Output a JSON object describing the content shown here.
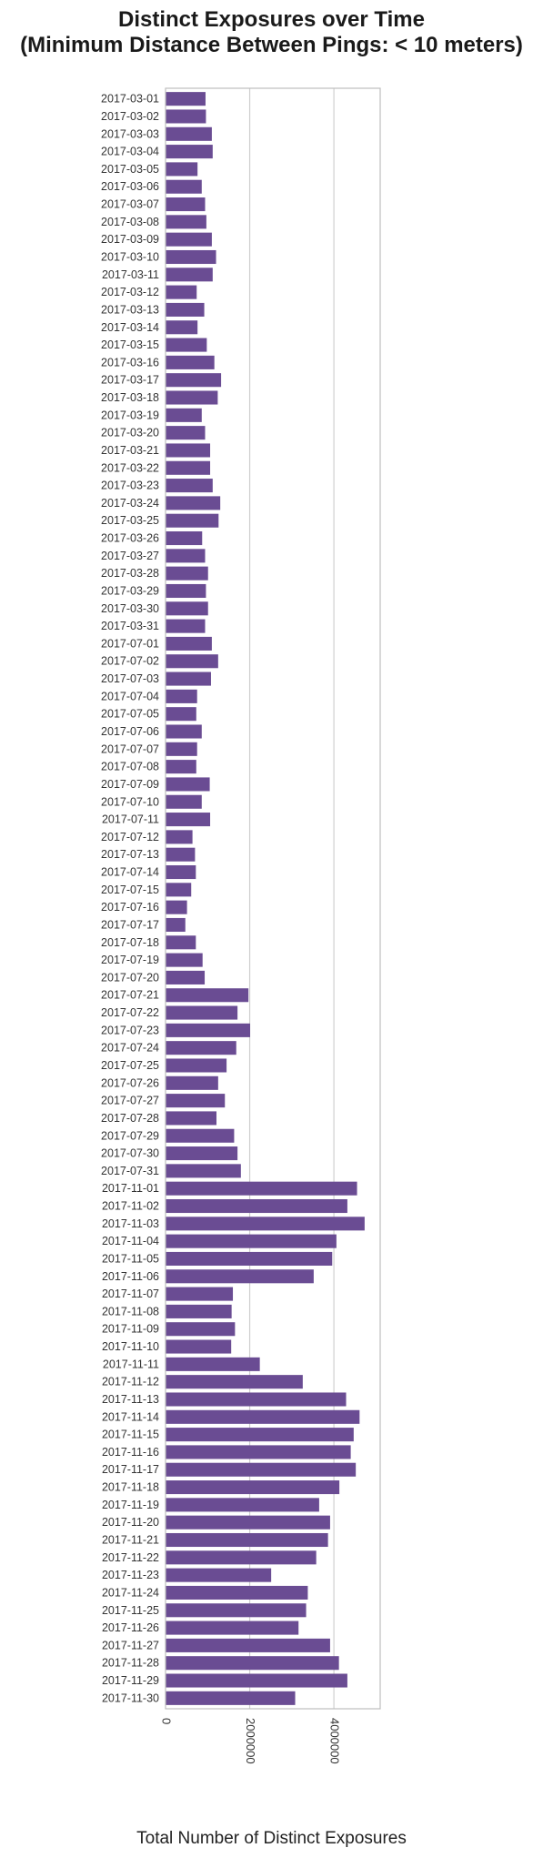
{
  "chart_data": {
    "type": "bar",
    "orientation": "horizontal",
    "title": "Distinct Exposures over Time",
    "subtitle": "(Minimum Distance Between Pings: < 10 meters)",
    "xlabel": "Total Number of Distinct Exposures",
    "ylabel": "",
    "xlim": [
      0,
      5100000
    ],
    "xticks": [
      0,
      2000000,
      4000000
    ],
    "xtick_labels": [
      "0",
      "2000000",
      "4000000"
    ],
    "grid": "vertical",
    "bar_color": "#6a4c93",
    "categories": [
      "2017-03-01",
      "2017-03-02",
      "2017-03-03",
      "2017-03-04",
      "2017-03-05",
      "2017-03-06",
      "2017-03-07",
      "2017-03-08",
      "2017-03-09",
      "2017-03-10",
      "2017-03-11",
      "2017-03-12",
      "2017-03-13",
      "2017-03-14",
      "2017-03-15",
      "2017-03-16",
      "2017-03-17",
      "2017-03-18",
      "2017-03-19",
      "2017-03-20",
      "2017-03-21",
      "2017-03-22",
      "2017-03-23",
      "2017-03-24",
      "2017-03-25",
      "2017-03-26",
      "2017-03-27",
      "2017-03-28",
      "2017-03-29",
      "2017-03-30",
      "2017-03-31",
      "2017-07-01",
      "2017-07-02",
      "2017-07-03",
      "2017-07-04",
      "2017-07-05",
      "2017-07-06",
      "2017-07-07",
      "2017-07-08",
      "2017-07-09",
      "2017-07-10",
      "2017-07-11",
      "2017-07-12",
      "2017-07-13",
      "2017-07-14",
      "2017-07-15",
      "2017-07-16",
      "2017-07-17",
      "2017-07-18",
      "2017-07-19",
      "2017-07-20",
      "2017-07-21",
      "2017-07-22",
      "2017-07-23",
      "2017-07-24",
      "2017-07-25",
      "2017-07-26",
      "2017-07-27",
      "2017-07-28",
      "2017-07-29",
      "2017-07-30",
      "2017-07-31",
      "2017-11-01",
      "2017-11-02",
      "2017-11-03",
      "2017-11-04",
      "2017-11-05",
      "2017-11-06",
      "2017-11-07",
      "2017-11-08",
      "2017-11-09",
      "2017-11-10",
      "2017-11-11",
      "2017-11-12",
      "2017-11-13",
      "2017-11-14",
      "2017-11-15",
      "2017-11-16",
      "2017-11-17",
      "2017-11-18",
      "2017-11-19",
      "2017-11-20",
      "2017-11-21",
      "2017-11-22",
      "2017-11-23",
      "2017-11-24",
      "2017-11-25",
      "2017-11-26",
      "2017-11-27",
      "2017-11-28",
      "2017-11-29",
      "2017-11-30"
    ],
    "values": [
      950000,
      960000,
      1100000,
      1120000,
      760000,
      860000,
      940000,
      970000,
      1100000,
      1200000,
      1120000,
      740000,
      920000,
      760000,
      980000,
      1160000,
      1320000,
      1240000,
      860000,
      940000,
      1060000,
      1060000,
      1120000,
      1300000,
      1260000,
      870000,
      940000,
      1010000,
      960000,
      1010000,
      940000,
      1100000,
      1250000,
      1080000,
      750000,
      730000,
      860000,
      750000,
      730000,
      1050000,
      860000,
      1060000,
      640000,
      700000,
      720000,
      610000,
      510000,
      470000,
      720000,
      880000,
      930000,
      1970000,
      1710000,
      2010000,
      1680000,
      1450000,
      1250000,
      1410000,
      1210000,
      1630000,
      1710000,
      1790000,
      4550000,
      4320000,
      4730000,
      4060000,
      3960000,
      3520000,
      1600000,
      1570000,
      1650000,
      1560000,
      2240000,
      3260000,
      4290000,
      4610000,
      4470000,
      4400000,
      4520000,
      4130000,
      3650000,
      3910000,
      3860000,
      3580000,
      2510000,
      3380000,
      3340000,
      3160000,
      3910000,
      4120000,
      4320000,
      3080000
    ]
  }
}
